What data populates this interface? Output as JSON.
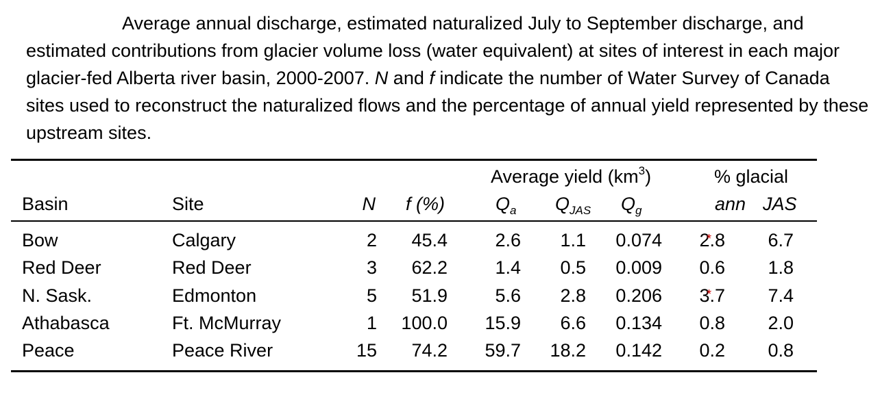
{
  "caption": {
    "part1": "Average annual discharge, estimated naturalized July to September discharge, and estimated contributions from glacier volume loss (water equivalent) at sites of interest in each major glacier-fed Alberta river basin, 2000-2007.  ",
    "var_n": "N",
    "and": " and ",
    "var_f": "f",
    "part2": " indicate the number of Water Survey of Canada sites used to reconstruct the naturalized flows and the percentage of annual yield represented by these upstream sites."
  },
  "table": {
    "group_headers": {
      "avg_yield": "Average yield (km",
      "avg_yield_sup": "3",
      "avg_yield_close": ")",
      "pct_glacial": "% glacial"
    },
    "columns": {
      "basin": "Basin",
      "site": "Site",
      "n": "N",
      "f": "f (%)",
      "qa": "Q",
      "qa_sub": "a",
      "qjas": "Q",
      "qjas_sub": "JAS",
      "qg": "Q",
      "qg_sub": "g",
      "ann": "ann",
      "jas": "JAS"
    },
    "rows": [
      {
        "basin": "Bow",
        "site": "Calgary",
        "n": "2",
        "f": "45.4",
        "qa": "2.6",
        "qjas": "1.1",
        "qg": "0.074",
        "ann": "2.8",
        "jas": "6.7",
        "mark": "*"
      },
      {
        "basin": "Red Deer",
        "site": "Red Deer",
        "n": "3",
        "f": "62.2",
        "qa": "1.4",
        "qjas": "0.5",
        "qg": "0.009",
        "ann": "0.6",
        "jas": "1.8",
        "mark": ""
      },
      {
        "basin": "N. Sask.",
        "site": "Edmonton",
        "n": "5",
        "f": "51.9",
        "qa": "5.6",
        "qjas": "2.8",
        "qg": "0.206",
        "ann": "3.7",
        "jas": "7.4",
        "mark": "*"
      },
      {
        "basin": "Athabasca",
        "site": "Ft. McMurray",
        "n": "1",
        "f": "100.0",
        "qa": "15.9",
        "qjas": "6.6",
        "qg": "0.134",
        "ann": "0.8",
        "jas": "2.0",
        "mark": ""
      },
      {
        "basin": "Peace",
        "site": "Peace River",
        "n": "15",
        "f": "74.2",
        "qa": "59.7",
        "qjas": "18.2",
        "qg": "0.142",
        "ann": "0.2",
        "jas": "0.8",
        "mark": ""
      }
    ],
    "mark_color": "#cc0000"
  }
}
